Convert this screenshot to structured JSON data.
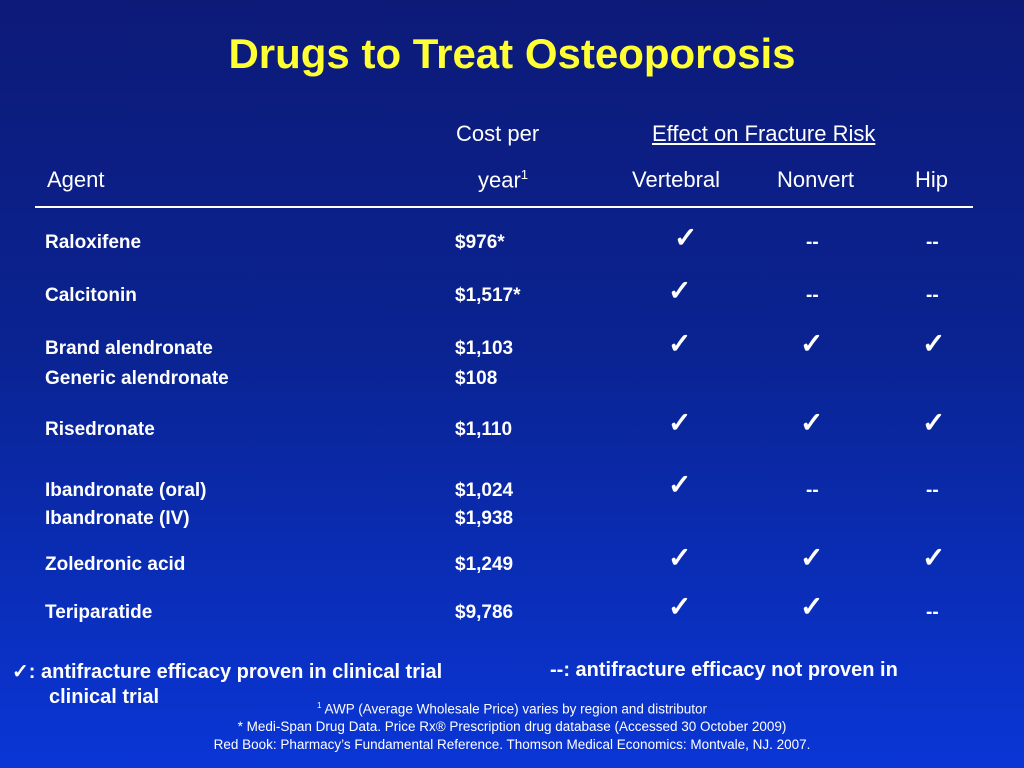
{
  "title": "Drugs to Treat Osteoporosis",
  "headers": {
    "cost_line1": "Cost per",
    "cost_line2": "year",
    "cost_sup": "1",
    "effect": "Effect on Fracture Risk",
    "agent": "Agent",
    "vertebral": "Vertebral",
    "nonvert": "Nonvert",
    "hip": "Hip"
  },
  "check_symbol": "✓",
  "dash_symbol": "--",
  "rows": [
    {
      "agent": "Raloxifene",
      "cost": "$976*",
      "vertebral": "✓",
      "nonvert": "--",
      "hip": "--"
    },
    {
      "agent": "Calcitonin",
      "cost": "$1,517*",
      "vertebral": "✓",
      "nonvert": "--",
      "hip": "--"
    },
    {
      "agent": "Brand alendronate",
      "cost": "$1,103",
      "vertebral": "✓",
      "nonvert": "✓",
      "hip": "✓"
    },
    {
      "agent": "Generic alendronate",
      "cost": "$108"
    },
    {
      "agent": "Risedronate",
      "cost": "$1,110",
      "vertebral": "✓",
      "nonvert": "✓",
      "hip": "✓"
    },
    {
      "agent": "Ibandronate (oral)",
      "cost": "$1,024",
      "vertebral": "✓",
      "nonvert": "--",
      "hip": "--"
    },
    {
      "agent": "Ibandronate (IV)",
      "cost": "$1,938"
    },
    {
      "agent": "Zoledronic acid",
      "cost": "$1,249",
      "vertebral": "✓",
      "nonvert": "✓",
      "hip": "✓"
    },
    {
      "agent": "Teriparatide",
      "cost": "$9,786",
      "vertebral": "✓",
      "nonvert": "✓",
      "hip": "--"
    }
  ],
  "legend": {
    "check_text": ": antifracture efficacy proven in clinical trial",
    "check_text_cont": "clinical trial",
    "dash_text": "--: antifracture efficacy not proven in"
  },
  "footnotes": {
    "awp_sup": "1",
    "awp": " AWP (Average Wholesale Price) varies by region and distributor",
    "medispan": "* Medi-Span Drug Data. Price Rx® Prescription drug database (Accessed 30 October 2009)",
    "redbook": "Red Book: Pharmacy’s Fundamental Reference. Thomson Medical Economics: Montvale, NJ. 2007."
  },
  "colors": {
    "title": "#ffff33",
    "background_top": "#0d1a78",
    "background_bottom": "#0a36d6",
    "text": "#ffffff"
  }
}
